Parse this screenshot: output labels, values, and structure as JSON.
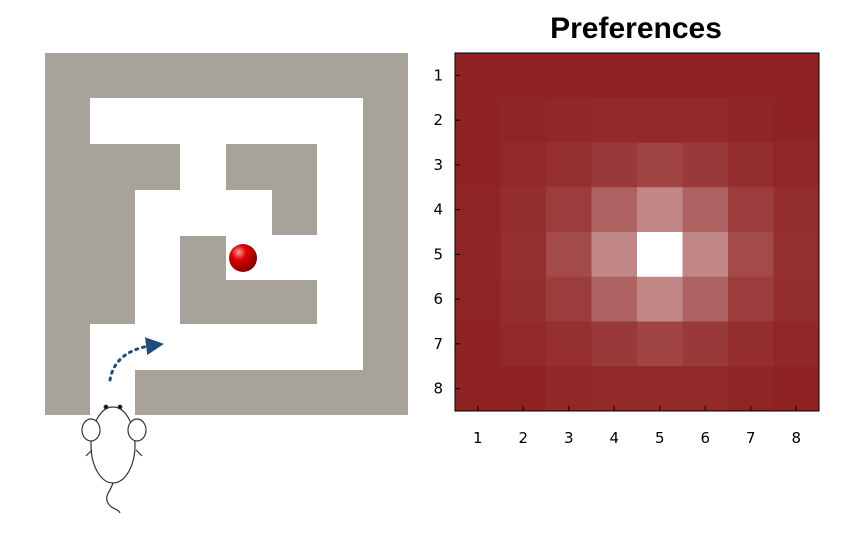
{
  "chart_data": {
    "type": "heatmap",
    "title": "Preferences",
    "xlabel": "",
    "ylabel": "",
    "x_ticks": [
      "1",
      "2",
      "3",
      "4",
      "5",
      "6",
      "7",
      "8"
    ],
    "y_ticks": [
      "1",
      "2",
      "3",
      "4",
      "5",
      "6",
      "7",
      "8"
    ],
    "xlim": [
      0.5,
      8.5
    ],
    "ylim": [
      0.5,
      8.5
    ],
    "y_direction": "top-to-bottom",
    "colormap": {
      "low": "#8f2323",
      "high": "#ffffff"
    },
    "grid": false,
    "values": [
      [
        0.0,
        0.0,
        0.0,
        0.0,
        0.0,
        0.0,
        0.0,
        0.0
      ],
      [
        0.0,
        0.01,
        0.02,
        0.03,
        0.03,
        0.03,
        0.01,
        0.0
      ],
      [
        0.0,
        0.03,
        0.06,
        0.1,
        0.15,
        0.1,
        0.05,
        0.02
      ],
      [
        0.01,
        0.05,
        0.12,
        0.28,
        0.45,
        0.28,
        0.12,
        0.05
      ],
      [
        0.01,
        0.06,
        0.18,
        0.45,
        1.0,
        0.45,
        0.18,
        0.06
      ],
      [
        0.01,
        0.05,
        0.12,
        0.28,
        0.45,
        0.28,
        0.12,
        0.05
      ],
      [
        0.0,
        0.03,
        0.06,
        0.1,
        0.15,
        0.1,
        0.05,
        0.02
      ],
      [
        0.0,
        0.0,
        0.02,
        0.03,
        0.03,
        0.03,
        0.01,
        0.0
      ]
    ]
  },
  "maze": {
    "wall_color": "#a7a39b",
    "path_color": "#ffffff",
    "goal_color": "#e00000",
    "arrow_color": "#1f4e79"
  }
}
